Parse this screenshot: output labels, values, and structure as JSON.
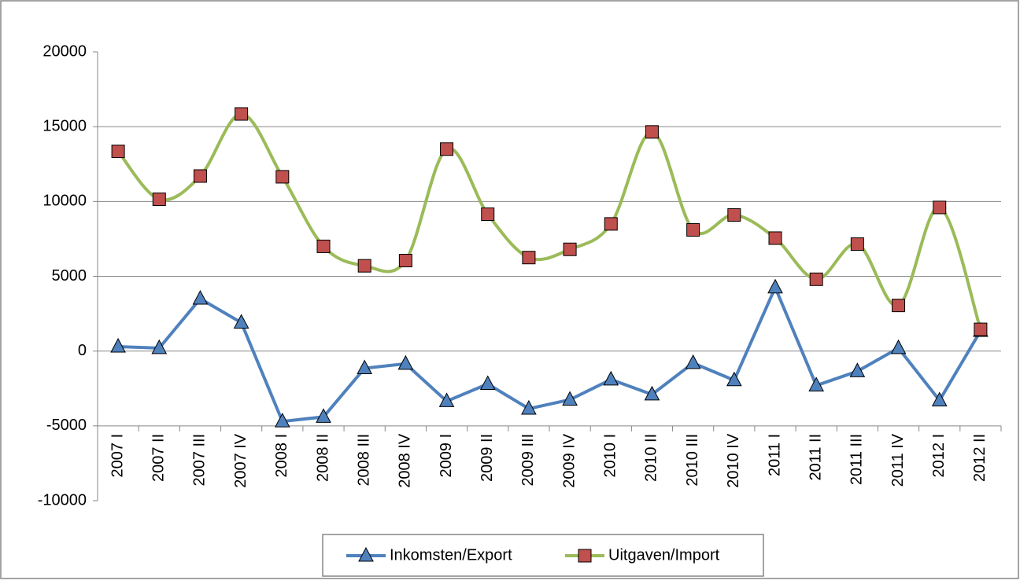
{
  "chart_data": {
    "type": "line",
    "categories": [
      "2007 I",
      "2007 II",
      "2007 III",
      "2007 IV",
      "2008 I",
      "2008 II",
      "2008 III",
      "2008 IV",
      "2009 I",
      "2009 II",
      "2009 III",
      "2009 IV",
      "2010 I",
      "2010 II",
      "2010 III",
      "2010 IV",
      "2011 I",
      "2011 II",
      "2011 III",
      "2011 IV",
      "2012 I",
      "2012 II"
    ],
    "series": [
      {
        "name": "Inkomsten/Export",
        "color": "#4f81bd",
        "marker": "triangle",
        "smooth": false,
        "values": [
          300,
          200,
          3500,
          1900,
          -4700,
          -4400,
          -1150,
          -850,
          -3350,
          -2200,
          -3850,
          -3250,
          -1900,
          -2900,
          -800,
          -1950,
          4250,
          -2300,
          -1350,
          200,
          -3300,
          1350
        ]
      },
      {
        "name": "Uitgaven/Import",
        "color": "#9bbb59",
        "marker": "square",
        "smooth": true,
        "values": [
          13350,
          10150,
          11700,
          15850,
          11650,
          7000,
          5700,
          6050,
          13500,
          9150,
          6250,
          6800,
          8500,
          14650,
          8100,
          9100,
          7550,
          4800,
          7150,
          3050,
          9600,
          1450
        ]
      }
    ],
    "ylim": [
      -10000,
      20000
    ],
    "yticks": [
      -10000,
      -5000,
      0,
      5000,
      10000,
      15000,
      20000
    ],
    "xaxis_crosses": -5000,
    "grid": true,
    "legend": "bottom"
  }
}
